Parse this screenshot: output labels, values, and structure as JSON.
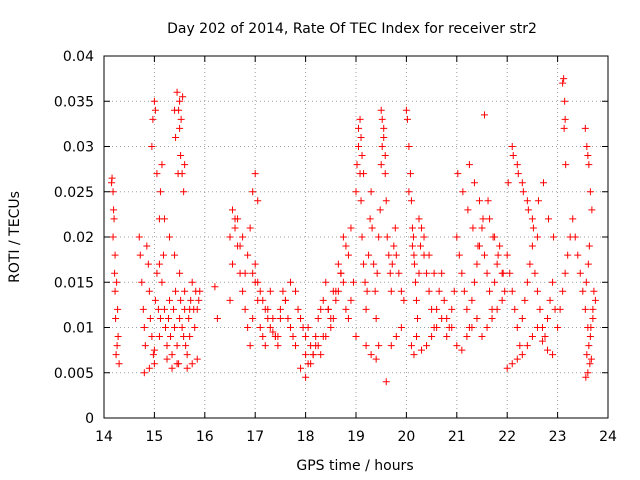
{
  "chart_data": {
    "type": "scatter",
    "title": "Day 202 of 2014, Rate Of TEC Index for receiver str2",
    "xlabel": "GPS time / hours",
    "ylabel": "ROTI / TECUs",
    "xlim": [
      14,
      24
    ],
    "ylim": [
      0,
      0.04
    ],
    "x_ticks": [
      14,
      15,
      16,
      17,
      18,
      19,
      20,
      21,
      22,
      23,
      24
    ],
    "y_ticks": [
      0,
      0.005,
      0.01,
      0.015,
      0.02,
      0.025,
      0.03,
      0.035,
      0.04
    ],
    "x_tick_labels": [
      "14",
      "15",
      "16",
      "17",
      "18",
      "19",
      "20",
      "21",
      "22",
      "23",
      "24"
    ],
    "y_tick_labels": [
      "0",
      "0.005",
      "0.01",
      "0.015",
      "0.02",
      "0.025",
      "0.03",
      "0.035",
      "0.04"
    ],
    "grid": true,
    "marker": "+",
    "color": "#ff0000",
    "series": [
      {
        "name": "str2",
        "x": [
          14.15,
          14.18,
          14.2,
          14.22,
          14.25,
          14.27,
          14.28,
          14.3,
          14.16,
          14.19,
          14.21,
          14.23,
          14.26,
          14.22,
          14.18,
          14.24,
          14.7,
          14.72,
          14.75,
          14.78,
          14.8,
          14.82,
          14.85,
          14.88,
          14.9,
          14.92,
          14.95,
          14.98,
          15.0,
          15.02,
          15.05,
          15.08,
          15.1,
          15.12,
          15.15,
          15.18,
          15.2,
          15.22,
          15.25,
          15.28,
          15.3,
          15.32,
          15.35,
          15.38,
          15.4,
          15.42,
          15.45,
          15.48,
          15.5,
          15.52,
          15.55,
          15.58,
          15.6,
          15.62,
          15.65,
          15.68,
          15.7,
          15.72,
          15.75,
          15.78,
          15.8,
          15.82,
          15.85,
          15.88,
          15.9,
          14.95,
          14.97,
          15.0,
          15.02,
          15.05,
          15.1,
          15.12,
          15.15,
          15.4,
          15.42,
          15.45,
          15.48,
          15.5,
          15.52,
          15.55,
          15.58,
          15.6,
          15.56,
          15.53,
          15.5,
          15.47,
          15.1,
          15.2,
          15.3,
          15.4,
          15.5,
          15.6,
          15.7,
          14.8,
          14.9,
          15.0,
          15.25,
          15.35,
          15.45,
          15.65,
          15.75,
          15.85,
          16.2,
          16.25,
          16.5,
          16.55,
          16.6,
          16.65,
          16.7,
          16.75,
          16.8,
          16.85,
          16.9,
          16.95,
          17.0,
          17.05,
          17.1,
          17.15,
          17.2,
          17.25,
          17.3,
          17.35,
          17.4,
          17.45,
          17.5,
          17.55,
          17.6,
          17.65,
          17.7,
          17.75,
          17.8,
          17.85,
          17.9,
          17.95,
          16.5,
          16.6,
          16.7,
          16.8,
          16.9,
          17.0,
          17.1,
          17.2,
          17.3,
          17.4,
          17.5,
          17.6,
          17.7,
          17.8,
          16.55,
          16.65,
          16.75,
          16.85,
          16.95,
          17.05,
          17.15,
          17.25,
          17.35,
          17.45,
          16.95,
          17.0,
          17.05,
          18.0,
          18.05,
          18.1,
          18.15,
          18.2,
          18.25,
          18.3,
          18.35,
          18.4,
          18.45,
          18.5,
          18.55,
          18.6,
          18.65,
          18.7,
          18.75,
          18.8,
          18.85,
          18.9,
          18.95,
          17.9,
          18.0,
          18.1,
          18.2,
          18.3,
          18.4,
          18.5,
          18.6,
          18.7,
          18.8,
          18.9,
          18.0,
          18.05,
          18.15,
          18.25,
          18.35,
          18.45,
          18.55,
          18.65,
          18.75,
          18.85,
          19.0,
          19.02,
          19.05,
          19.08,
          19.1,
          19.12,
          19.15,
          19.18,
          19.2,
          19.22,
          19.25,
          19.28,
          19.3,
          19.32,
          19.35,
          19.38,
          19.4,
          19.42,
          19.45,
          19.48,
          19.5,
          19.52,
          19.55,
          19.58,
          19.6,
          19.62,
          19.65,
          19.68,
          19.7,
          19.72,
          19.75,
          19.78,
          19.8,
          19.85,
          19.9,
          19.95,
          19.05,
          19.08,
          19.1,
          19.12,
          19.15,
          19.5,
          19.52,
          19.55,
          19.58,
          19.0,
          19.2,
          19.3,
          19.4,
          19.6,
          19.7,
          19.8,
          19.9,
          19.45,
          20.0,
          20.02,
          20.05,
          20.08,
          20.1,
          20.12,
          20.15,
          20.18,
          20.2,
          20.22,
          20.25,
          20.28,
          20.3,
          20.35,
          20.4,
          20.45,
          20.5,
          20.55,
          20.6,
          20.65,
          20.7,
          20.75,
          20.8,
          20.85,
          20.9,
          20.95,
          20.1,
          20.15,
          20.2,
          20.3,
          20.4,
          20.5,
          20.6,
          20.7,
          20.8,
          20.9,
          20.12,
          20.14,
          20.16,
          20.05,
          20.25,
          20.35,
          20.45,
          20.55,
          21.0,
          21.05,
          21.1,
          21.15,
          21.2,
          21.25,
          21.3,
          21.35,
          21.4,
          21.45,
          21.5,
          21.55,
          21.6,
          21.65,
          21.7,
          21.75,
          21.8,
          21.85,
          21.9,
          21.95,
          21.0,
          21.1,
          21.2,
          21.3,
          21.4,
          21.5,
          21.6,
          21.7,
          21.8,
          21.9,
          21.02,
          21.12,
          21.22,
          21.32,
          21.42,
          21.52,
          21.62,
          21.72,
          21.82,
          21.92,
          21.25,
          21.35,
          21.45,
          21.55,
          21.65,
          21.75,
          22.0,
          22.05,
          22.1,
          22.15,
          22.2,
          22.25,
          22.3,
          22.35,
          22.4,
          22.45,
          22.5,
          22.55,
          22.6,
          22.65,
          22.7,
          22.75,
          22.8,
          22.85,
          22.9,
          22.95,
          22.0,
          22.1,
          22.2,
          22.3,
          22.4,
          22.5,
          22.6,
          22.7,
          22.8,
          22.9,
          22.02,
          22.12,
          22.22,
          22.32,
          22.42,
          22.52,
          22.62,
          22.72,
          22.82,
          22.92,
          22.1,
          22.2,
          22.3,
          22.4,
          22.5,
          22.6,
          23.0,
          23.05,
          23.1,
          23.15,
          23.2,
          23.25,
          23.3,
          23.35,
          23.4,
          23.45,
          23.5,
          23.55,
          23.6,
          23.65,
          23.7,
          23.75,
          23.1,
          23.12,
          23.14,
          23.15,
          23.13,
          23.16,
          23.55,
          23.58,
          23.6,
          23.62,
          23.65,
          23.68,
          23.56,
          23.6,
          23.64,
          23.67,
          23.58,
          23.62,
          23.66,
          23.7,
          23.72,
          23.57,
          23.61,
          23.63
        ],
        "y": [
          0.026,
          0.025,
          0.022,
          0.018,
          0.015,
          0.012,
          0.009,
          0.006,
          0.0265,
          0.023,
          0.016,
          0.011,
          0.008,
          0.014,
          0.02,
          0.007,
          0.02,
          0.018,
          0.015,
          0.012,
          0.01,
          0.008,
          0.019,
          0.017,
          0.014,
          0.011,
          0.009,
          0.007,
          0.0075,
          0.013,
          0.016,
          0.012,
          0.009,
          0.011,
          0.015,
          0.018,
          0.012,
          0.01,
          0.008,
          0.011,
          0.013,
          0.009,
          0.007,
          0.012,
          0.01,
          0.014,
          0.008,
          0.006,
          0.011,
          0.013,
          0.01,
          0.009,
          0.012,
          0.008,
          0.007,
          0.011,
          0.009,
          0.013,
          0.015,
          0.012,
          0.01,
          0.014,
          0.012,
          0.013,
          0.014,
          0.03,
          0.033,
          0.035,
          0.034,
          0.027,
          0.022,
          0.025,
          0.028,
          0.034,
          0.031,
          0.036,
          0.034,
          0.035,
          0.029,
          0.027,
          0.025,
          0.028,
          0.0355,
          0.033,
          0.032,
          0.027,
          0.017,
          0.022,
          0.02,
          0.018,
          0.016,
          0.014,
          0.012,
          0.005,
          0.0055,
          0.006,
          0.0065,
          0.0055,
          0.006,
          0.0055,
          0.006,
          0.0065,
          0.0145,
          0.011,
          0.013,
          0.017,
          0.021,
          0.019,
          0.016,
          0.014,
          0.012,
          0.01,
          0.008,
          0.011,
          0.015,
          0.013,
          0.01,
          0.009,
          0.008,
          0.012,
          0.014,
          0.011,
          0.009,
          0.008,
          0.012,
          0.014,
          0.013,
          0.011,
          0.01,
          0.009,
          0.008,
          0.012,
          0.011,
          0.01,
          0.02,
          0.022,
          0.019,
          0.016,
          0.021,
          0.017,
          0.014,
          0.012,
          0.01,
          0.009,
          0.011,
          0.013,
          0.015,
          0.014,
          0.023,
          0.022,
          0.02,
          0.018,
          0.016,
          0.015,
          0.013,
          0.011,
          0.0095,
          0.009,
          0.025,
          0.027,
          0.024,
          0.009,
          0.01,
          0.008,
          0.007,
          0.009,
          0.011,
          0.012,
          0.013,
          0.015,
          0.012,
          0.01,
          0.011,
          0.013,
          0.014,
          0.016,
          0.015,
          0.012,
          0.011,
          0.013,
          0.015,
          0.0055,
          0.007,
          0.006,
          0.008,
          0.007,
          0.009,
          0.011,
          0.014,
          0.016,
          0.019,
          0.021,
          0.0045,
          0.006,
          0.007,
          0.008,
          0.009,
          0.012,
          0.014,
          0.017,
          0.02,
          0.018,
          0.025,
          0.028,
          0.03,
          0.027,
          0.024,
          0.02,
          0.017,
          0.015,
          0.012,
          0.014,
          0.018,
          0.022,
          0.025,
          0.021,
          0.017,
          0.014,
          0.011,
          0.016,
          0.02,
          0.023,
          0.028,
          0.03,
          0.032,
          0.027,
          0.024,
          0.02,
          0.018,
          0.016,
          0.014,
          0.017,
          0.019,
          0.021,
          0.018,
          0.016,
          0.014,
          0.013,
          0.032,
          0.033,
          0.031,
          0.029,
          0.027,
          0.034,
          0.033,
          0.031,
          0.029,
          0.009,
          0.008,
          0.007,
          0.0065,
          0.004,
          0.008,
          0.009,
          0.01,
          0.008,
          0.034,
          0.033,
          0.03,
          0.027,
          0.024,
          0.021,
          0.018,
          0.015,
          0.013,
          0.011,
          0.016,
          0.019,
          0.021,
          0.018,
          0.016,
          0.014,
          0.012,
          0.01,
          0.012,
          0.014,
          0.016,
          0.013,
          0.011,
          0.01,
          0.012,
          0.014,
          0.008,
          0.007,
          0.009,
          0.0075,
          0.008,
          0.009,
          0.01,
          0.011,
          0.009,
          0.01,
          0.019,
          0.02,
          0.017,
          0.025,
          0.022,
          0.02,
          0.018,
          0.016,
          0.02,
          0.018,
          0.016,
          0.014,
          0.012,
          0.01,
          0.013,
          0.015,
          0.017,
          0.019,
          0.021,
          0.018,
          0.016,
          0.014,
          0.012,
          0.015,
          0.017,
          0.019,
          0.016,
          0.014,
          0.008,
          0.0075,
          0.009,
          0.01,
          0.011,
          0.009,
          0.01,
          0.011,
          0.012,
          0.013,
          0.027,
          0.025,
          0.023,
          0.021,
          0.019,
          0.022,
          0.024,
          0.02,
          0.018,
          0.016,
          0.028,
          0.026,
          0.024,
          0.0335,
          0.022,
          0.02,
          0.018,
          0.016,
          0.014,
          0.012,
          0.01,
          0.008,
          0.011,
          0.013,
          0.015,
          0.017,
          0.019,
          0.016,
          0.014,
          0.012,
          0.01,
          0.009,
          0.011,
          0.013,
          0.015,
          0.012,
          0.0055,
          0.006,
          0.0065,
          0.007,
          0.008,
          0.009,
          0.01,
          0.0085,
          0.0075,
          0.007,
          0.026,
          0.029,
          0.027,
          0.025,
          0.023,
          0.021,
          0.024,
          0.026,
          0.022,
          0.02,
          0.03,
          0.028,
          0.026,
          0.024,
          0.022,
          0.02,
          0.01,
          0.012,
          0.014,
          0.016,
          0.018,
          0.02,
          0.022,
          0.02,
          0.018,
          0.016,
          0.014,
          0.012,
          0.01,
          0.009,
          0.011,
          0.013,
          0.037,
          0.0375,
          0.035,
          0.033,
          0.032,
          0.028,
          0.032,
          0.03,
          0.029,
          0.028,
          0.025,
          0.023,
          0.0045,
          0.005,
          0.006,
          0.0065,
          0.007,
          0.008,
          0.01,
          0.012,
          0.014,
          0.015,
          0.017,
          0.019
        ]
      }
    ]
  }
}
